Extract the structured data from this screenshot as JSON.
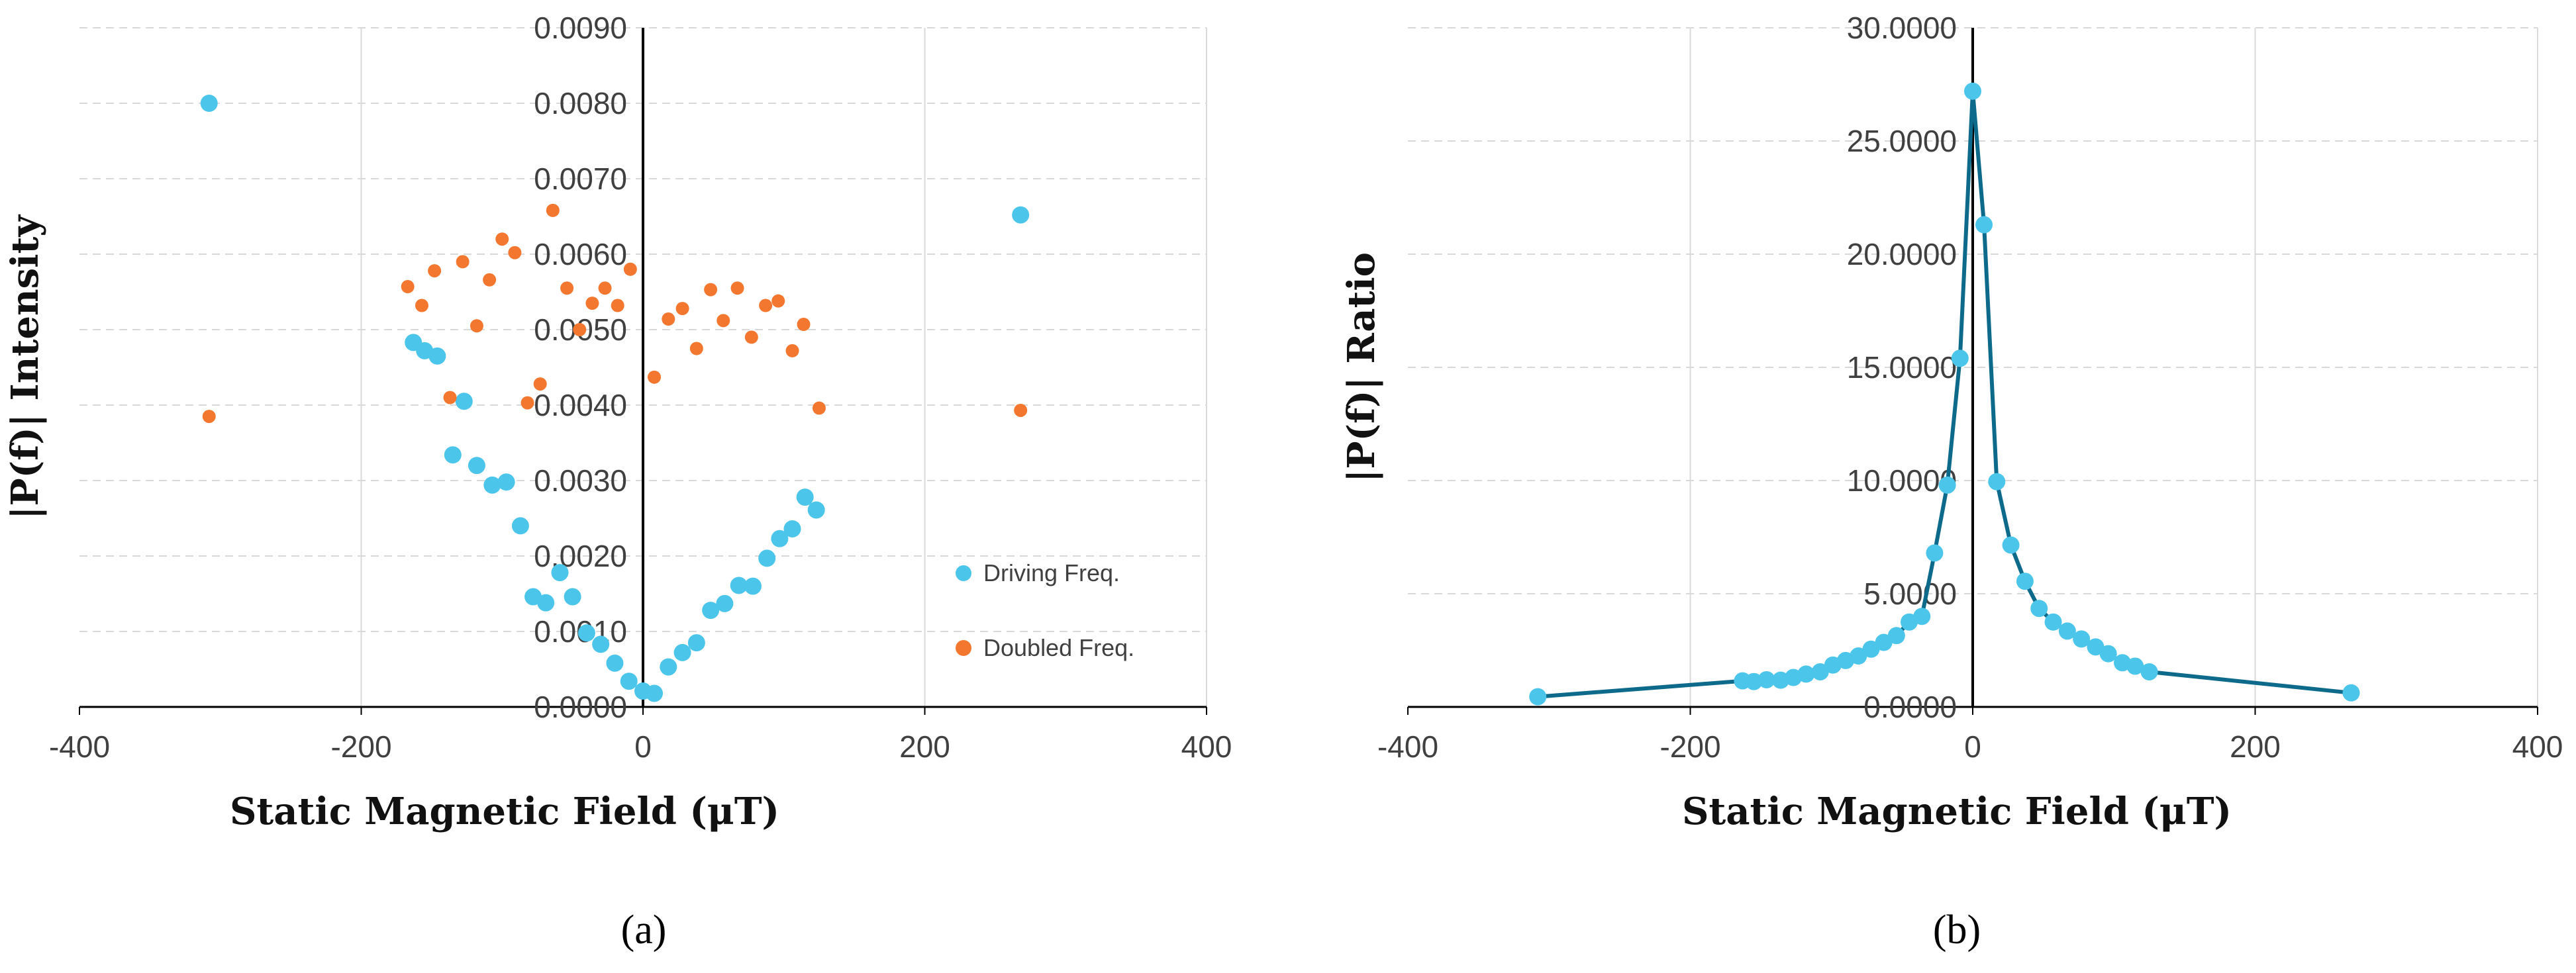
{
  "colors": {
    "driving": "#4BC6EA",
    "doubled": "#F4772F",
    "ratio_line": "#0E6A8A",
    "grid": "#D9D9D9",
    "axis": "#000000"
  },
  "chart_data": [
    {
      "type": "scatter",
      "panel_label": "(a)",
      "xlabel": "Static Magnetic Field (μT)",
      "ylabel": "|P(f)| Intensity",
      "xlim": [
        -400,
        400
      ],
      "ylim": [
        0,
        0.009
      ],
      "xticks": [
        -400,
        -200,
        0,
        200,
        400
      ],
      "xtick_labels": [
        "-400",
        "-200",
        "0",
        "200",
        "400"
      ],
      "yticks": [
        0,
        0.001,
        0.002,
        0.003,
        0.004,
        0.005,
        0.006,
        0.007,
        0.008,
        0.009
      ],
      "ytick_labels": [
        "0.0000",
        "0.0010",
        "0.0020",
        "0.0030",
        "0.0040",
        "0.0050",
        "0.0060",
        "0.0070",
        "0.0080",
        "0.0090"
      ],
      "grid": "horizontal-dashed",
      "legend_position": "bottom-right",
      "series": [
        {
          "name": "Driving Freq.",
          "color": "#4BC6EA",
          "points": [
            [
              -308,
              0.008
            ],
            [
              -163,
              0.00483
            ],
            [
              -155,
              0.00472
            ],
            [
              -146,
              0.00465
            ],
            [
              -135,
              0.00334
            ],
            [
              -127,
              0.00405
            ],
            [
              -118,
              0.0032
            ],
            [
              -107,
              0.00294
            ],
            [
              -97,
              0.00298
            ],
            [
              -87,
              0.0024
            ],
            [
              -78,
              0.00146
            ],
            [
              -69,
              0.00138
            ],
            [
              -59,
              0.00178
            ],
            [
              -50,
              0.00146
            ],
            [
              -40,
              0.00098
            ],
            [
              -30,
              0.00083
            ],
            [
              -20,
              0.00058
            ],
            [
              -10,
              0.00034
            ],
            [
              0,
              0.00021
            ],
            [
              8,
              0.00018
            ],
            [
              18,
              0.00053
            ],
            [
              28,
              0.00072
            ],
            [
              38,
              0.00085
            ],
            [
              48,
              0.00128
            ],
            [
              58,
              0.00137
            ],
            [
              68,
              0.00161
            ],
            [
              78,
              0.0016
            ],
            [
              88,
              0.00197
            ],
            [
              97,
              0.00223
            ],
            [
              106,
              0.00236
            ],
            [
              115,
              0.00278
            ],
            [
              123,
              0.00261
            ],
            [
              268,
              0.00652
            ]
          ]
        },
        {
          "name": "Doubled Freq.",
          "color": "#F4772F",
          "points": [
            [
              -308,
              0.00385
            ],
            [
              -167,
              0.00557
            ],
            [
              -157,
              0.00532
            ],
            [
              -148,
              0.00578
            ],
            [
              -137,
              0.0041
            ],
            [
              -128,
              0.0059
            ],
            [
              -118,
              0.00505
            ],
            [
              -109,
              0.00566
            ],
            [
              -100,
              0.0062
            ],
            [
              -91,
              0.00602
            ],
            [
              -82,
              0.00403
            ],
            [
              -73,
              0.00428
            ],
            [
              -64,
              0.00658
            ],
            [
              -54,
              0.00555
            ],
            [
              -45,
              0.005
            ],
            [
              -36,
              0.00535
            ],
            [
              -27,
              0.00555
            ],
            [
              -18,
              0.00532
            ],
            [
              -9,
              0.0058
            ],
            [
              8,
              0.00437
            ],
            [
              18,
              0.00514
            ],
            [
              28,
              0.00528
            ],
            [
              38,
              0.00475
            ],
            [
              48,
              0.00553
            ],
            [
              57,
              0.00512
            ],
            [
              67,
              0.00555
            ],
            [
              77,
              0.0049
            ],
            [
              87,
              0.00532
            ],
            [
              96,
              0.00538
            ],
            [
              106,
              0.00472
            ],
            [
              114,
              0.00507
            ],
            [
              125,
              0.00396
            ],
            [
              268,
              0.00393
            ]
          ]
        }
      ]
    },
    {
      "type": "line",
      "panel_label": "(b)",
      "xlabel": "Static Magnetic Field (μT)",
      "ylabel": "|P(f)| Ratio",
      "xlim": [
        -400,
        400
      ],
      "ylim": [
        0,
        30
      ],
      "xticks": [
        -400,
        -200,
        0,
        200,
        400
      ],
      "xtick_labels": [
        "-400",
        "-200",
        "0",
        "200",
        "400"
      ],
      "yticks": [
        0,
        5,
        10,
        15,
        20,
        25,
        30
      ],
      "ytick_labels": [
        "0.0000",
        "5.0000",
        "10.0000",
        "15.0000",
        "20.0000",
        "25.0000",
        "30.0000"
      ],
      "grid": "horizontal-dashed",
      "series": [
        {
          "name": "Ratio",
          "color": "#0E6A8A",
          "marker_color": "#4BC6EA",
          "points": [
            [
              -308,
              0.45
            ],
            [
              -163,
              1.15
            ],
            [
              -155,
              1.12
            ],
            [
              -146,
              1.2
            ],
            [
              -136,
              1.18
            ],
            [
              -127,
              1.3
            ],
            [
              -118,
              1.45
            ],
            [
              -108,
              1.55
            ],
            [
              -99,
              1.85
            ],
            [
              -90,
              2.05
            ],
            [
              -81,
              2.25
            ],
            [
              -72,
              2.55
            ],
            [
              -63,
              2.85
            ],
            [
              -54,
              3.15
            ],
            [
              -45,
              3.75
            ],
            [
              -36,
              4.0
            ],
            [
              -27,
              6.8
            ],
            [
              -18,
              9.8
            ],
            [
              -9,
              15.4
            ],
            [
              0,
              27.2
            ],
            [
              8,
              21.3
            ],
            [
              17,
              9.95
            ],
            [
              27,
              7.15
            ],
            [
              37,
              5.55
            ],
            [
              47,
              4.35
            ],
            [
              57,
              3.75
            ],
            [
              67,
              3.35
            ],
            [
              77,
              3.0
            ],
            [
              87,
              2.65
            ],
            [
              96,
              2.35
            ],
            [
              106,
              1.95
            ],
            [
              115,
              1.8
            ],
            [
              125,
              1.55
            ],
            [
              268,
              0.62
            ]
          ]
        }
      ]
    }
  ]
}
